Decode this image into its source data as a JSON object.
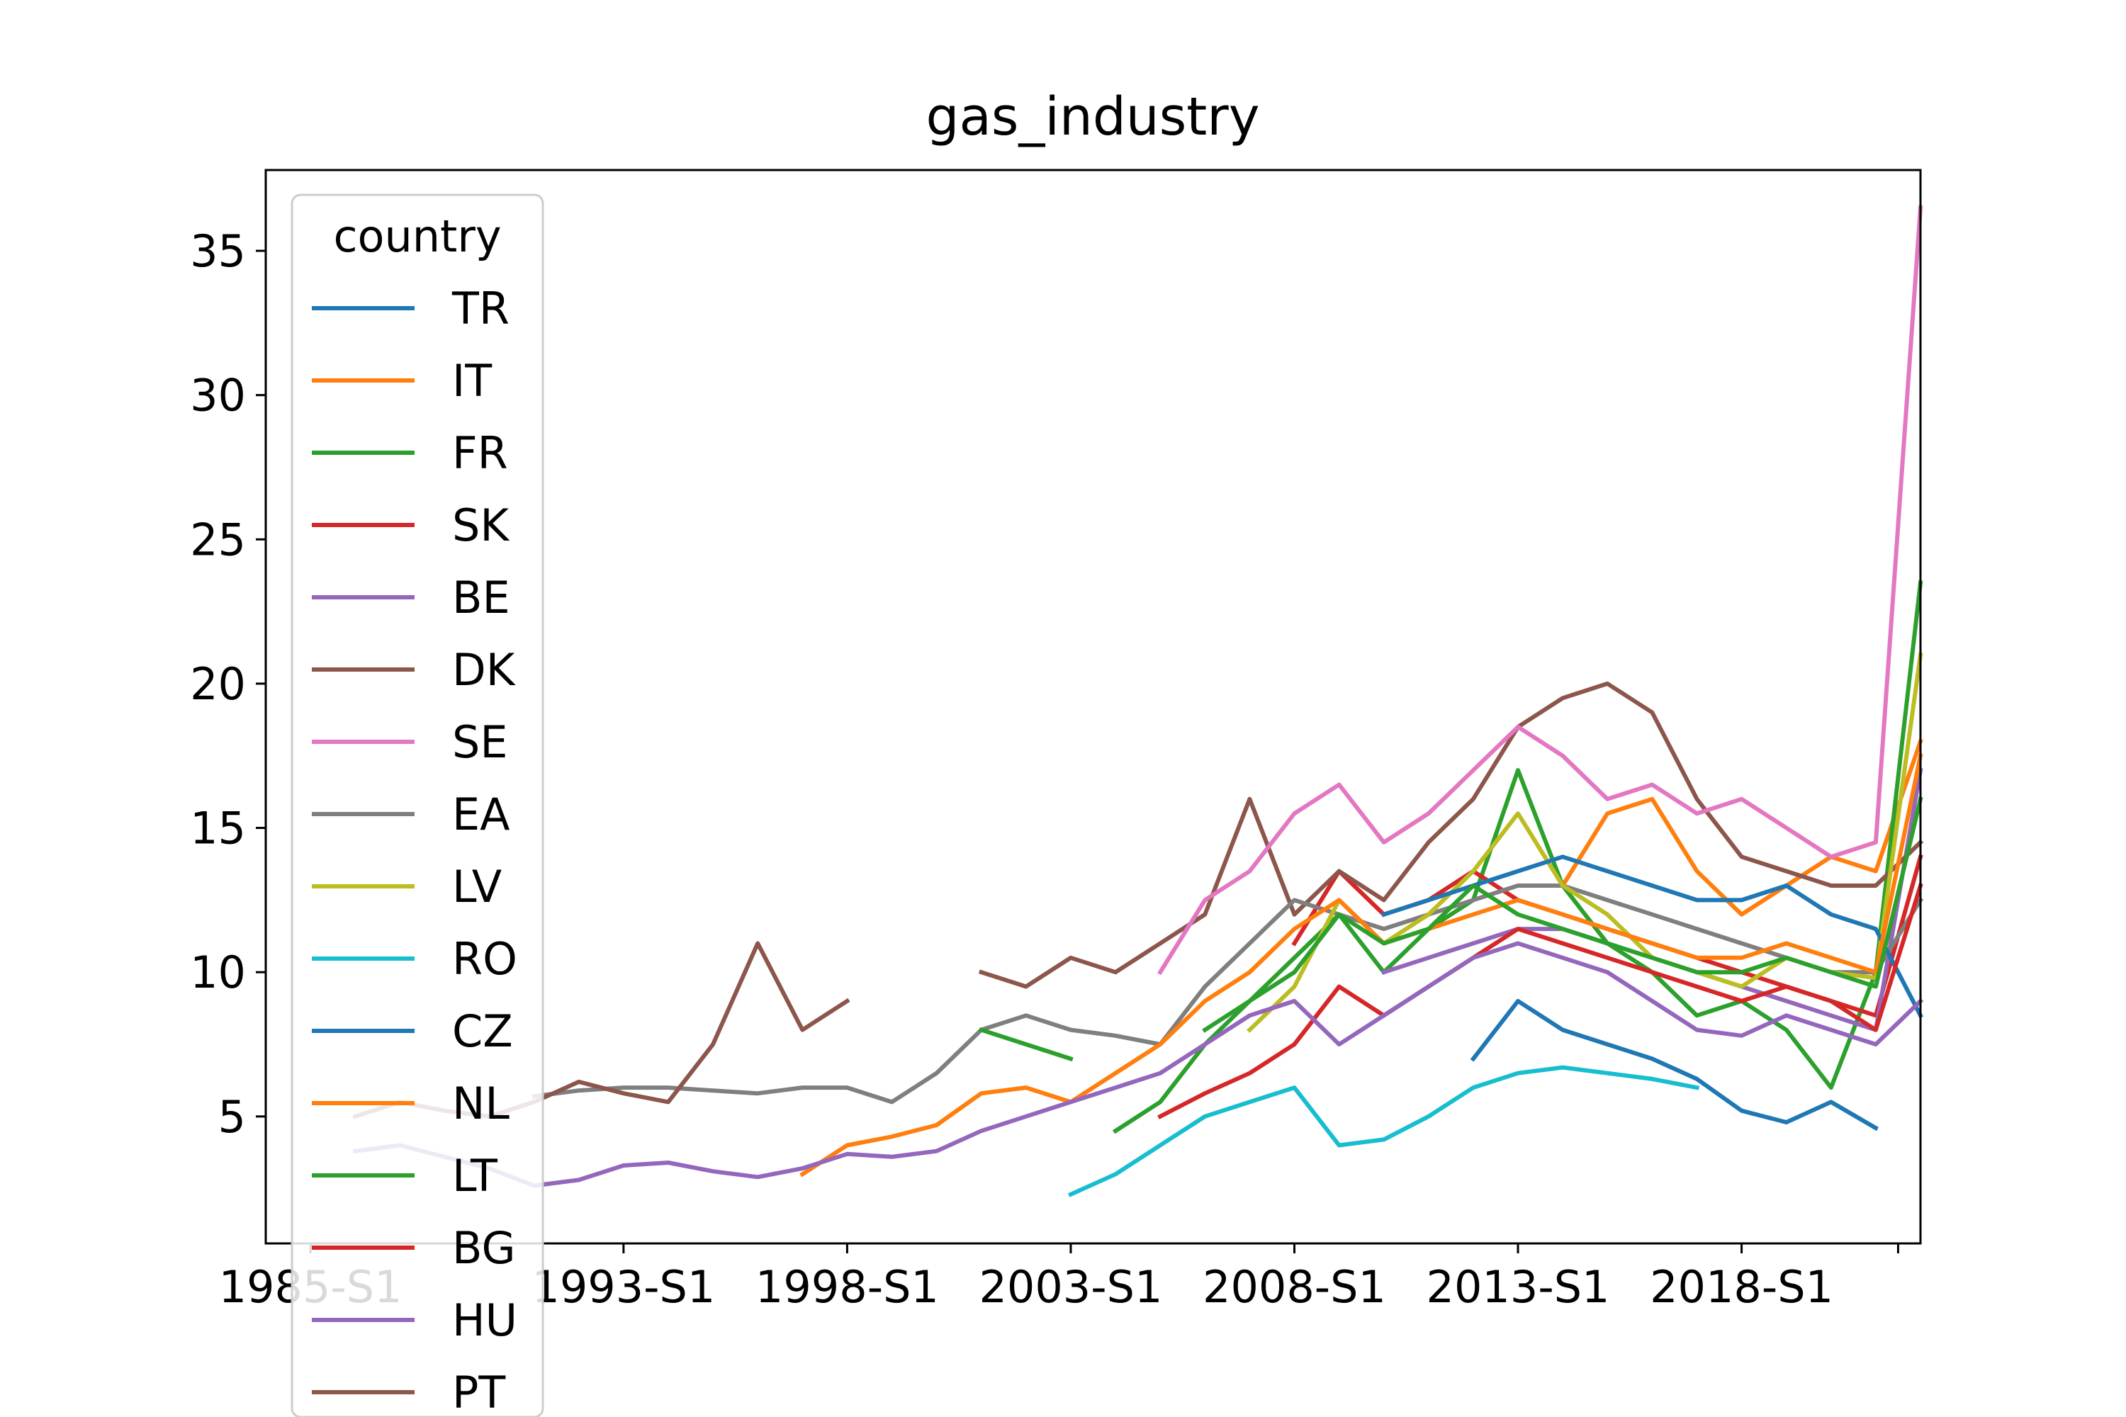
{
  "chart_data": {
    "type": "line",
    "title": "gas_industry",
    "xlabel": "",
    "ylabel": "",
    "x_ticks": [
      "1985-S1",
      "1993-S1",
      "1998-S1",
      "2003-S1",
      "2008-S1",
      "2013-S1",
      "2018-S1"
    ],
    "y_ticks": [
      "5",
      "10",
      "15",
      "20",
      "25",
      "30",
      "35"
    ],
    "xlim": [
      1985.0,
      2022.0
    ],
    "ylim": [
      0.6,
      37.8
    ],
    "grid": false,
    "legend": {
      "title": "country",
      "placement": "upper-left"
    },
    "x": [
      1985.0,
      1986.0,
      1987.0,
      1988.0,
      1989.0,
      1990.0,
      1991.0,
      1992.0,
      1993.0,
      1994.0,
      1995.0,
      1996.0,
      1997.0,
      1998.0,
      1999.0,
      2000.0,
      2001.0,
      2002.0,
      2003.0,
      2004.0,
      2005.0,
      2006.0,
      2007.0,
      2008.0,
      2009.0,
      2010.0,
      2011.0,
      2012.0,
      2013.0,
      2014.0,
      2015.0,
      2016.0,
      2017.0,
      2018.0,
      2019.0,
      2020.0,
      2021.0,
      2022.0
    ],
    "series": [
      {
        "name": "TR",
        "color": "#1f77b4",
        "values": [
          null,
          null,
          null,
          null,
          null,
          null,
          null,
          null,
          null,
          null,
          null,
          null,
          null,
          null,
          null,
          null,
          null,
          null,
          null,
          null,
          null,
          null,
          null,
          null,
          null,
          null,
          null,
          7.0,
          9.0,
          8.0,
          7.5,
          7.0,
          6.3,
          5.2,
          4.8,
          5.5,
          4.6,
          null
        ]
      },
      {
        "name": "IT",
        "color": "#ff7f0e",
        "values": [
          null,
          null,
          null,
          null,
          null,
          null,
          null,
          null,
          null,
          null,
          null,
          null,
          null,
          null,
          null,
          null,
          null,
          null,
          null,
          null,
          null,
          null,
          null,
          null,
          null,
          null,
          null,
          null,
          null,
          13.0,
          15.5,
          16.0,
          13.5,
          12.0,
          13.0,
          14.0,
          13.5,
          18.0
        ]
      },
      {
        "name": "FR",
        "color": "#2ca02c",
        "values": [
          null,
          null,
          null,
          null,
          null,
          null,
          null,
          null,
          null,
          null,
          null,
          null,
          null,
          null,
          null,
          null,
          null,
          null,
          null,
          4.5,
          5.5,
          7.5,
          9.0,
          10.5,
          12.0,
          10.0,
          11.5,
          12.5,
          17.0,
          13.0,
          11.0,
          10.0,
          8.5,
          9.0,
          8.0,
          6.0,
          10.0,
          23.5
        ]
      },
      {
        "name": "SK",
        "color": "#d62728",
        "values": [
          null,
          null,
          null,
          null,
          null,
          null,
          null,
          null,
          null,
          null,
          null,
          null,
          null,
          null,
          null,
          null,
          null,
          null,
          null,
          null,
          null,
          null,
          null,
          11.0,
          13.5,
          12.0,
          12.5,
          13.5,
          12.5,
          12.0,
          11.5,
          11.0,
          10.5,
          10.0,
          9.5,
          9.0,
          8.5,
          14.0
        ]
      },
      {
        "name": "BE",
        "color": "#9467bd",
        "values": [
          null,
          null,
          null,
          null,
          null,
          null,
          null,
          null,
          null,
          null,
          null,
          null,
          null,
          null,
          null,
          null,
          null,
          null,
          null,
          null,
          null,
          null,
          null,
          null,
          null,
          10.0,
          10.5,
          11.0,
          11.5,
          11.5,
          11.0,
          10.5,
          10.0,
          9.5,
          9.0,
          8.5,
          8.0,
          17.0
        ]
      },
      {
        "name": "DK",
        "color": "#8c564b",
        "values": [
          null,
          null,
          null,
          null,
          null,
          null,
          null,
          null,
          null,
          null,
          null,
          null,
          null,
          null,
          null,
          null,
          10.0,
          9.5,
          10.5,
          10.0,
          11.0,
          12.0,
          16.0,
          12.0,
          13.5,
          12.5,
          14.5,
          16.0,
          18.5,
          19.5,
          20.0,
          19.0,
          16.0,
          14.0,
          13.5,
          13.0,
          13.0,
          14.5
        ]
      },
      {
        "name": "SE",
        "color": "#e377c2",
        "values": [
          null,
          null,
          null,
          null,
          null,
          null,
          null,
          null,
          null,
          null,
          null,
          null,
          null,
          null,
          null,
          null,
          null,
          null,
          null,
          null,
          10.0,
          12.5,
          13.5,
          15.5,
          16.5,
          14.5,
          15.5,
          17.0,
          18.5,
          17.5,
          16.0,
          16.5,
          15.5,
          16.0,
          15.0,
          14.0,
          14.5,
          36.5
        ]
      },
      {
        "name": "EA",
        "color": "#7f7f7f",
        "values": [
          null,
          null,
          null,
          null,
          null,
          null,
          5.7,
          5.9,
          6.0,
          6.0,
          5.9,
          5.8,
          6.0,
          6.0,
          5.5,
          6.5,
          8.0,
          8.5,
          8.0,
          7.8,
          7.5,
          9.5,
          11.0,
          12.5,
          12.0,
          11.5,
          12.0,
          12.5,
          13.0,
          13.0,
          12.5,
          12.0,
          11.5,
          11.0,
          10.5,
          10.0,
          10.0,
          12.5
        ]
      },
      {
        "name": "LV",
        "color": "#bcbd22",
        "values": [
          null,
          null,
          null,
          null,
          null,
          null,
          null,
          null,
          null,
          null,
          null,
          null,
          null,
          null,
          null,
          null,
          null,
          null,
          null,
          null,
          null,
          null,
          8.0,
          9.5,
          12.5,
          11.0,
          12.0,
          13.5,
          15.5,
          13.0,
          12.0,
          10.5,
          10.0,
          9.5,
          10.5,
          10.0,
          9.8,
          21.0
        ]
      },
      {
        "name": "RO",
        "color": "#17becf",
        "values": [
          null,
          null,
          null,
          null,
          null,
          null,
          null,
          null,
          null,
          null,
          null,
          null,
          null,
          null,
          null,
          null,
          null,
          null,
          2.3,
          3.0,
          4.0,
          5.0,
          5.5,
          6.0,
          4.0,
          4.2,
          5.0,
          6.0,
          6.5,
          6.7,
          6.5,
          6.3,
          6.0,
          null,
          null,
          null,
          null,
          null
        ]
      },
      {
        "name": "CZ",
        "color": "#1f77b4",
        "values": [
          null,
          null,
          null,
          null,
          null,
          null,
          null,
          null,
          null,
          null,
          null,
          null,
          null,
          null,
          null,
          null,
          null,
          null,
          null,
          null,
          null,
          null,
          null,
          null,
          null,
          12.0,
          12.5,
          13.0,
          13.5,
          14.0,
          13.5,
          13.0,
          12.5,
          12.5,
          13.0,
          12.0,
          11.5,
          8.5
        ]
      },
      {
        "name": "NL",
        "color": "#ff7f0e",
        "values": [
          null,
          null,
          null,
          null,
          null,
          null,
          null,
          null,
          null,
          null,
          null,
          null,
          3.0,
          4.0,
          4.3,
          4.7,
          5.8,
          6.0,
          5.5,
          6.5,
          7.5,
          9.0,
          10.0,
          11.5,
          12.5,
          11.0,
          11.5,
          12.0,
          12.5,
          12.0,
          11.5,
          11.0,
          10.5,
          10.5,
          11.0,
          10.5,
          10.0,
          17.5
        ]
      },
      {
        "name": "LT",
        "color": "#2ca02c",
        "values": [
          null,
          null,
          null,
          null,
          null,
          null,
          null,
          null,
          null,
          null,
          null,
          null,
          null,
          null,
          null,
          null,
          8.0,
          7.5,
          7.0,
          null,
          null,
          8.0,
          9.0,
          10.0,
          12.0,
          11.0,
          11.5,
          13.0,
          12.0,
          11.5,
          11.0,
          10.5,
          10.0,
          10.0,
          10.5,
          10.0,
          9.5,
          16.0
        ]
      },
      {
        "name": "BG",
        "color": "#d62728",
        "values": [
          null,
          null,
          null,
          null,
          null,
          null,
          null,
          null,
          null,
          null,
          null,
          null,
          null,
          null,
          null,
          null,
          null,
          null,
          null,
          null,
          5.0,
          5.8,
          6.5,
          7.5,
          9.5,
          8.5,
          9.5,
          10.5,
          11.5,
          11.0,
          10.5,
          10.0,
          9.5,
          9.0,
          9.5,
          9.0,
          8.0,
          13.0
        ]
      },
      {
        "name": "HU",
        "color": "#9467bd",
        "values": [
          null,
          null,
          3.8,
          4.0,
          3.6,
          3.2,
          2.6,
          2.8,
          3.3,
          3.4,
          3.1,
          2.9,
          3.2,
          3.7,
          3.6,
          3.8,
          4.5,
          5.0,
          5.5,
          6.0,
          6.5,
          7.5,
          8.5,
          9.0,
          7.5,
          8.5,
          9.5,
          10.5,
          11.0,
          10.5,
          10.0,
          9.0,
          8.0,
          7.8,
          8.5,
          8.0,
          7.5,
          9.0
        ]
      },
      {
        "name": "PT",
        "color": "#8c564b",
        "values": [
          null,
          null,
          5.0,
          5.5,
          5.2,
          5.0,
          5.5,
          6.2,
          5.8,
          5.5,
          7.5,
          11.0,
          8.0,
          9.0,
          null,
          null,
          null,
          null,
          null,
          null,
          null,
          null,
          null,
          null,
          null,
          null,
          null,
          null,
          null,
          null,
          null,
          null,
          null,
          null,
          null,
          null,
          null,
          null
        ]
      }
    ]
  }
}
